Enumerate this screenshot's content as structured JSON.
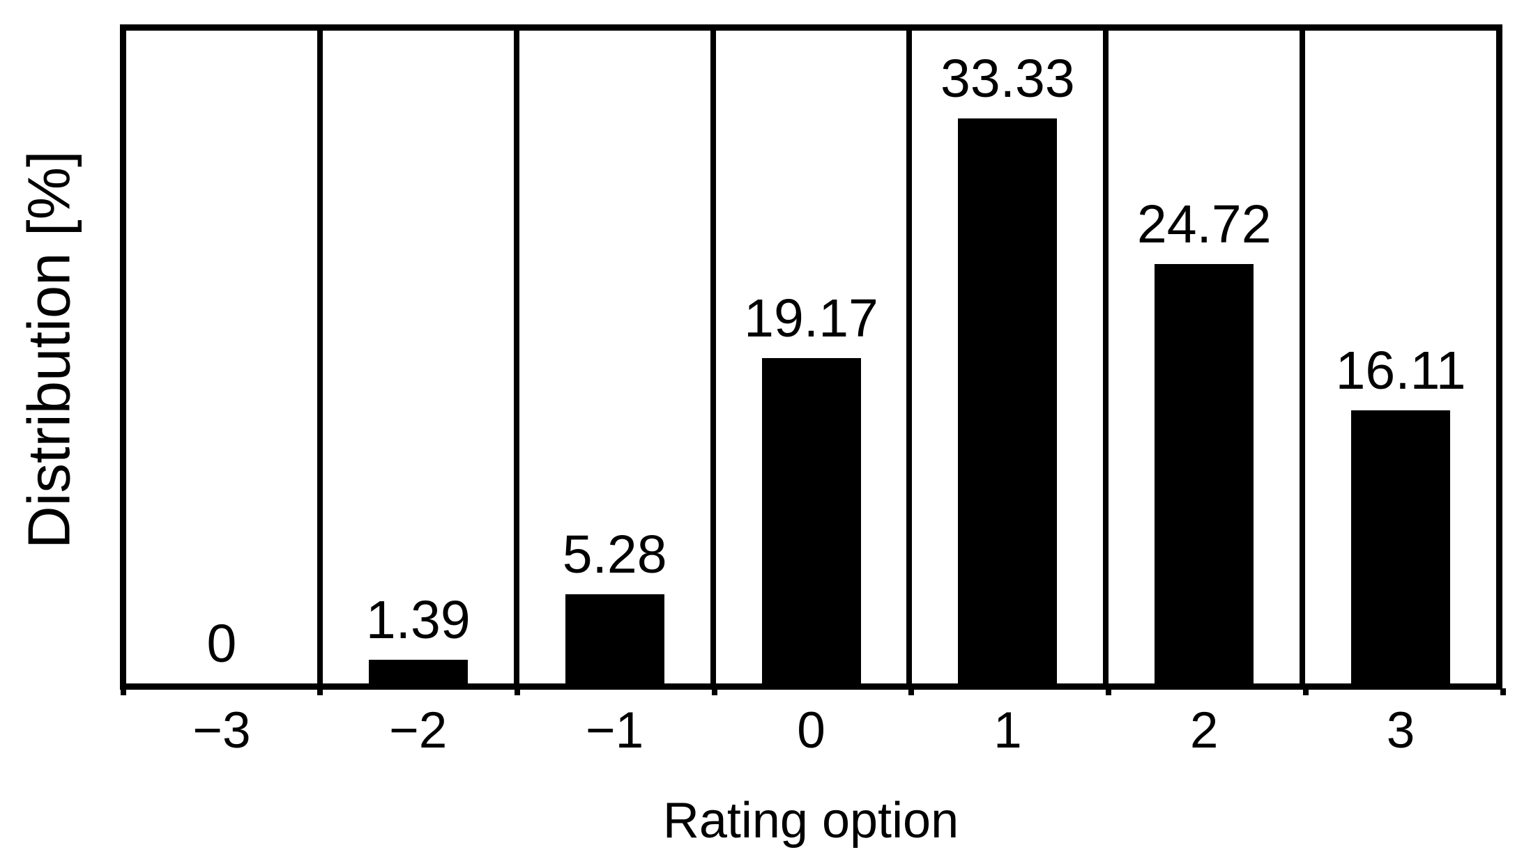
{
  "chart_data": {
    "type": "bar",
    "title": "",
    "xlabel": "Rating option",
    "ylabel": "Distribution [%]",
    "categories": [
      "−3",
      "−2",
      "−1",
      "0",
      "1",
      "2",
      "3"
    ],
    "values": [
      0,
      1.39,
      5.28,
      19.17,
      33.33,
      24.72,
      16.11
    ],
    "value_labels": [
      "0",
      "1.39",
      "5.28",
      "19.17",
      "33.33",
      "24.72",
      "16.11"
    ],
    "ylim": [
      0,
      38.5
    ],
    "y_ticks": "none (values printed above each bar)",
    "grid": "vertical black divider lines between category cells, full black frame around plot",
    "legend_position": "none",
    "bar_color": "#000000",
    "frame_color": "#000000",
    "background_color": "#ffffff",
    "label_color": "#000000"
  }
}
